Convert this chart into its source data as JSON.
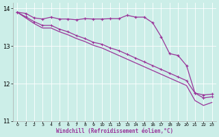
{
  "xlabel": "Windchill (Refroidissement éolien,°C)",
  "background_color": "#cceee8",
  "line_color": "#993399",
  "xlim": [
    -0.5,
    23.5
  ],
  "ylim": [
    11.0,
    14.15
  ],
  "yticks": [
    11,
    12,
    13,
    14
  ],
  "xticks": [
    0,
    1,
    2,
    3,
    4,
    5,
    6,
    7,
    8,
    9,
    10,
    11,
    12,
    13,
    14,
    15,
    16,
    17,
    18,
    19,
    20,
    21,
    22,
    23
  ],
  "hours": [
    0,
    1,
    2,
    3,
    4,
    5,
    6,
    7,
    8,
    9,
    10,
    11,
    12,
    13,
    14,
    15,
    16,
    17,
    18,
    19,
    20,
    21,
    22,
    23
  ],
  "line1_jagged": [
    13.9,
    13.87,
    13.75,
    13.72,
    13.77,
    13.72,
    13.72,
    13.7,
    13.73,
    13.72,
    13.72,
    13.73,
    13.73,
    13.82,
    13.77,
    13.77,
    13.62,
    13.25,
    12.8,
    12.75,
    12.48,
    11.75,
    11.7,
    11.72
  ],
  "line2_smooth1": [
    13.9,
    13.78,
    13.65,
    13.55,
    13.55,
    13.45,
    13.38,
    13.28,
    13.2,
    13.1,
    13.05,
    12.95,
    12.88,
    12.78,
    12.68,
    12.58,
    12.48,
    12.38,
    12.28,
    12.18,
    12.08,
    11.75,
    11.62,
    11.65
  ],
  "line2_smooth2": [
    13.9,
    13.75,
    13.6,
    13.48,
    13.48,
    13.38,
    13.3,
    13.2,
    13.12,
    13.02,
    12.95,
    12.85,
    12.75,
    12.65,
    12.55,
    12.45,
    12.35,
    12.25,
    12.15,
    12.05,
    11.95,
    11.55,
    11.42,
    11.5
  ]
}
